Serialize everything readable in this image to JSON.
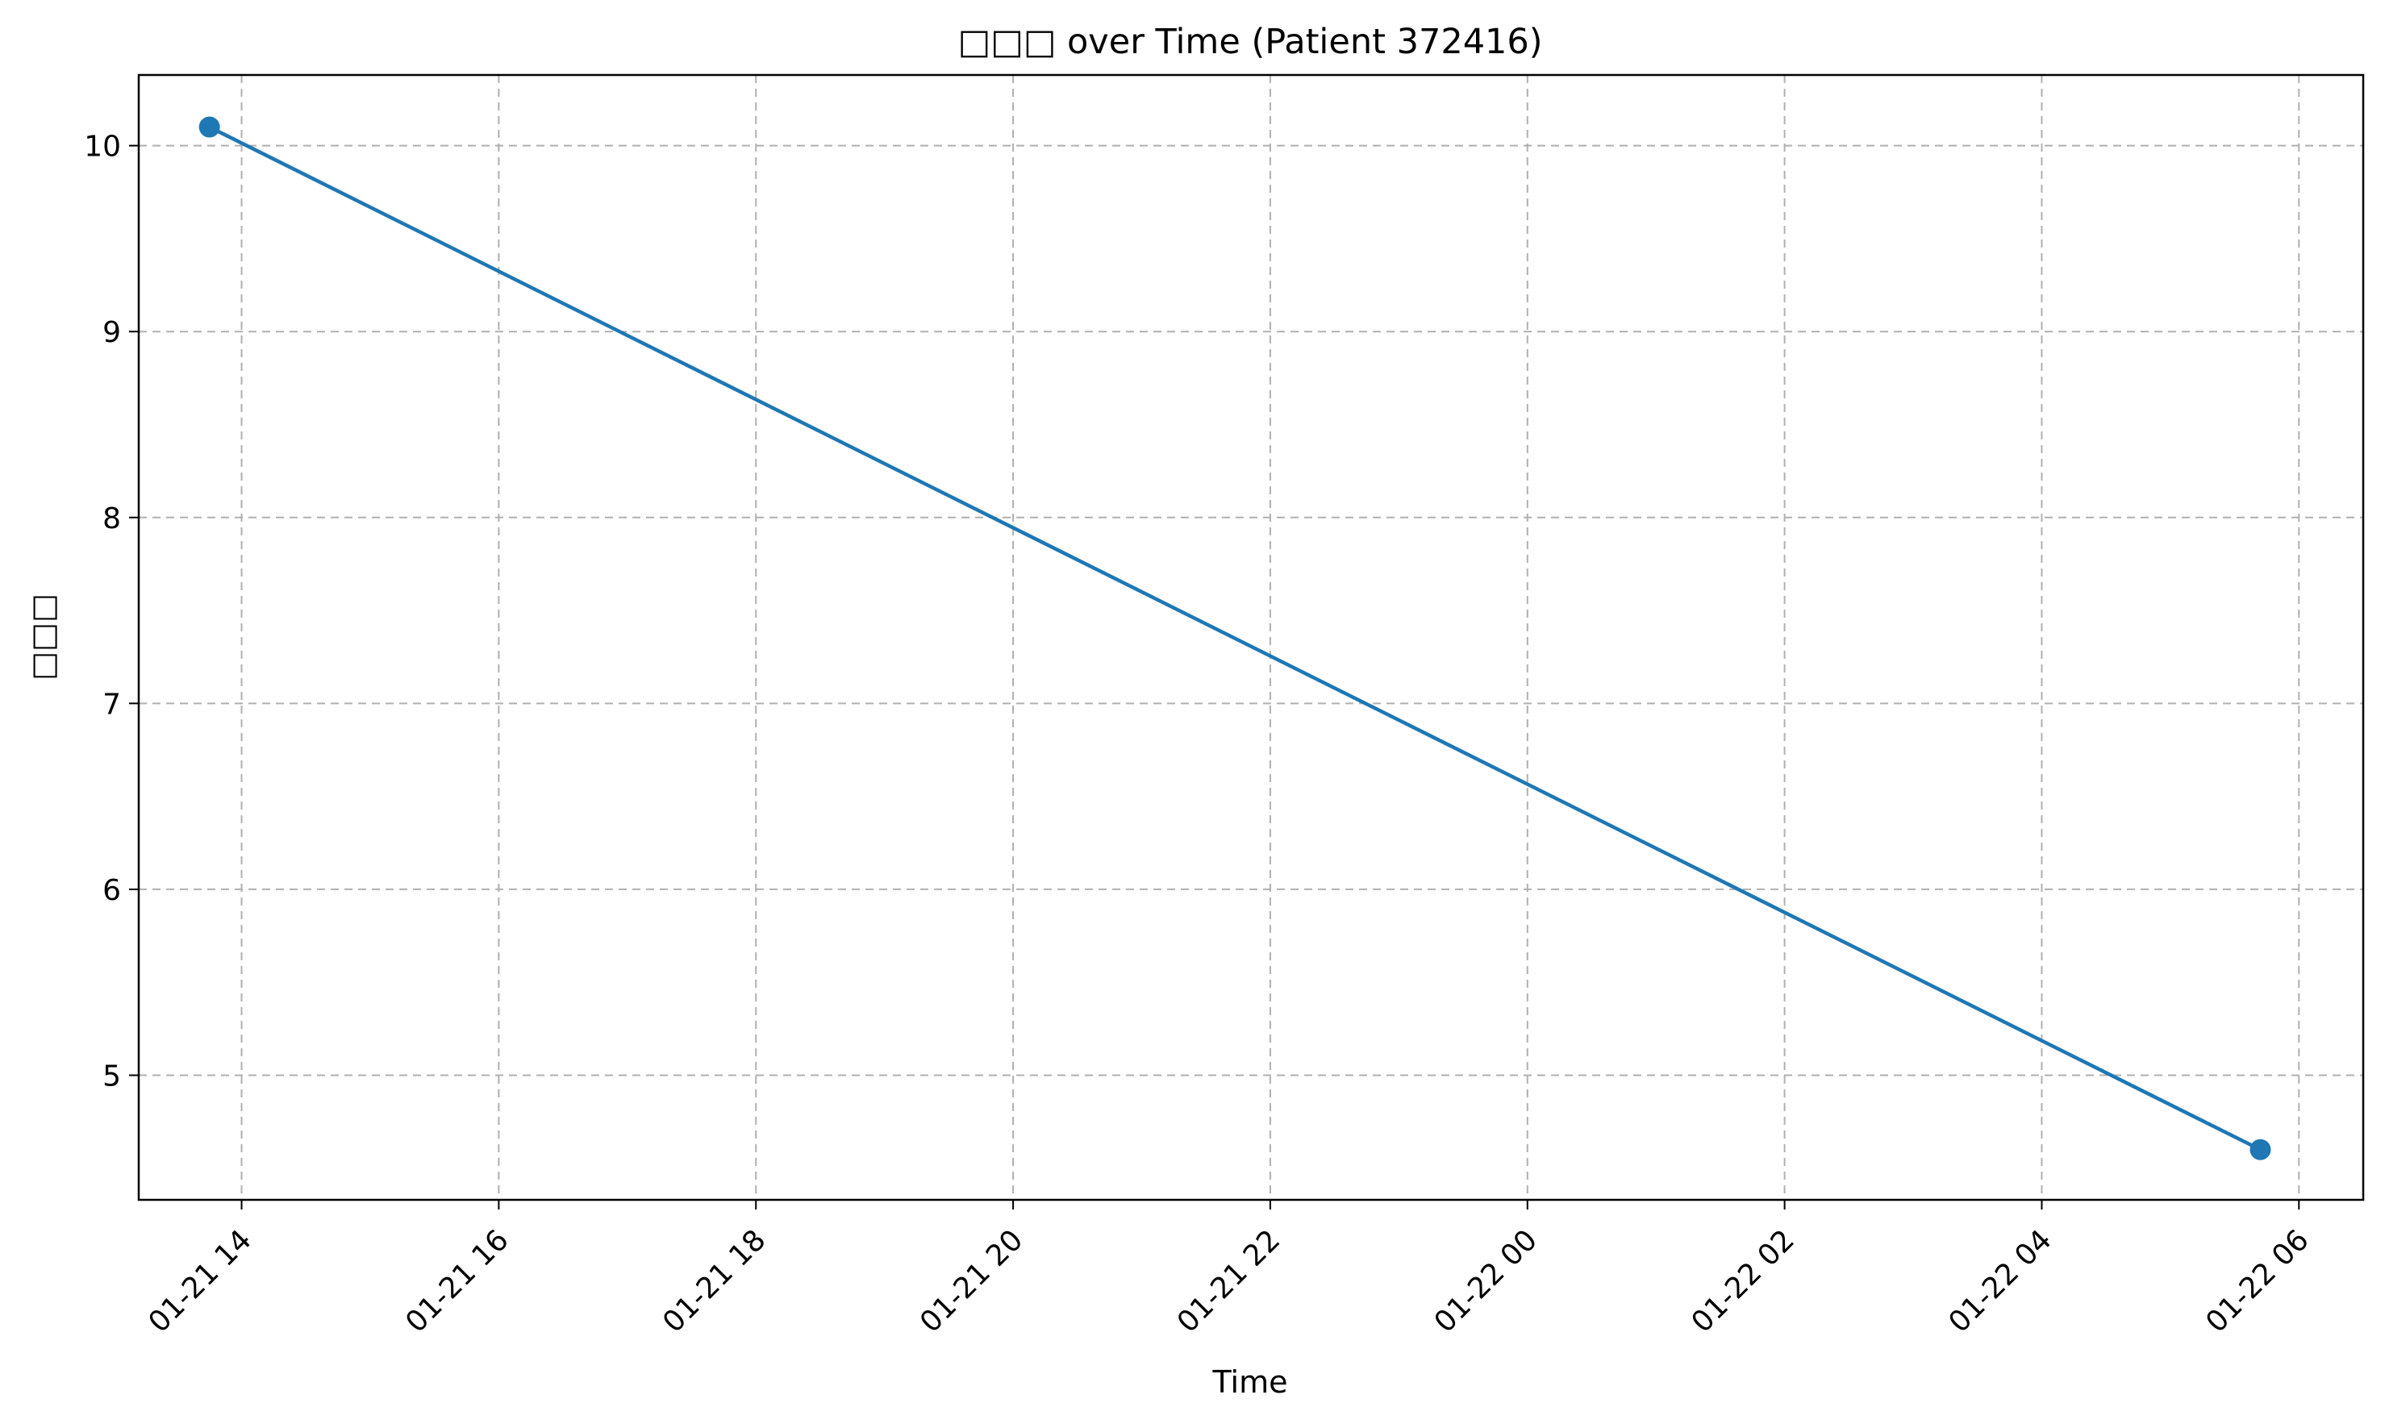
{
  "chart_data": {
    "type": "line",
    "title": "□□□ over Time (Patient 372416)",
    "xlabel": "Time",
    "ylabel": "□□□",
    "x_type": "datetime",
    "xlim": [
      "2024-01-21T13:12:00",
      "2024-01-22T06:30:00"
    ],
    "ylim": [
      4.33,
      10.38
    ],
    "x_ticks": [
      {
        "value": "2024-01-21T14:00:00",
        "label": "01-21 14"
      },
      {
        "value": "2024-01-21T16:00:00",
        "label": "01-21 16"
      },
      {
        "value": "2024-01-21T18:00:00",
        "label": "01-21 18"
      },
      {
        "value": "2024-01-21T20:00:00",
        "label": "01-21 20"
      },
      {
        "value": "2024-01-21T22:00:00",
        "label": "01-21 22"
      },
      {
        "value": "2024-01-22T00:00:00",
        "label": "01-22 00"
      },
      {
        "value": "2024-01-22T02:00:00",
        "label": "01-22 02"
      },
      {
        "value": "2024-01-22T04:00:00",
        "label": "01-22 04"
      },
      {
        "value": "2024-01-22T06:00:00",
        "label": "01-22 06"
      }
    ],
    "y_ticks": [
      5,
      6,
      7,
      8,
      9,
      10
    ],
    "grid": true,
    "series": [
      {
        "color": "#1f77b4",
        "points": [
          {
            "x": "2024-01-21T13:45:00",
            "y": 10.1
          },
          {
            "x": "2024-01-22T05:42:00",
            "y": 4.6
          }
        ]
      }
    ]
  }
}
